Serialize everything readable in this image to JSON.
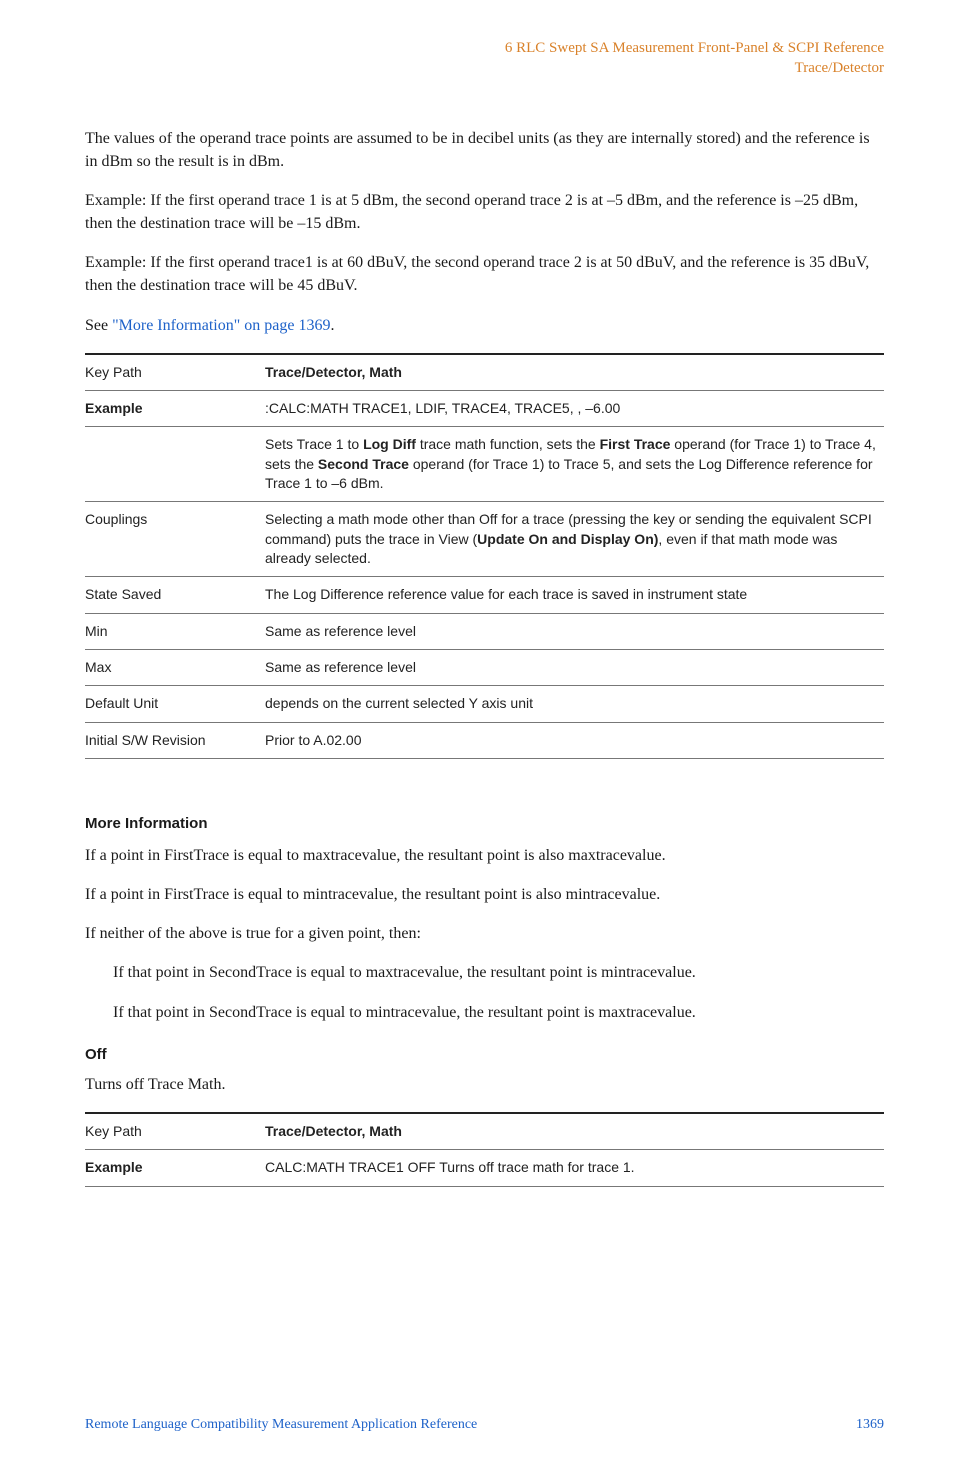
{
  "colors": {
    "header_orange": "#d9822b",
    "link_blue": "#1e62c9",
    "text": "#1a1a1a",
    "rule": "#777777",
    "rule_heavy": "#222222",
    "background": "#ffffff"
  },
  "typography": {
    "body_family": "Georgia, serif",
    "sans_family": "Helvetica Neue, Arial, sans-serif",
    "body_size_pt": 12,
    "table_size_pt": 10.5,
    "heading_size_pt": 11
  },
  "header": {
    "line1": "6  RLC Swept SA Measurement Front-Panel & SCPI Reference",
    "line2": "Trace/Detector"
  },
  "paragraphs": {
    "p1": "The values of the operand trace points are assumed to be in decibel units (as they are internally stored) and the reference is in dBm so the result is in dBm.",
    "p2": "Example: If the first operand trace 1 is at 5 dBm, the second operand trace 2 is at –5 dBm, and the reference is –25 dBm, then the destination trace will be –15 dBm.",
    "p3": "Example: If the first operand trace1 is at 60 dBuV, the second operand trace 2 is at 50 dBuV, and the reference is 35 dBuV, then the destination trace will be 45 dBuV.",
    "see_prefix": "See ",
    "see_link": "\"More Information\" on page 1369",
    "see_suffix": "."
  },
  "table1": {
    "rows": [
      {
        "key": "Key Path",
        "key_bold": false,
        "value_html": "<span class=\"bold\">Trace/Detector, Math</span>"
      },
      {
        "key": "Example",
        "key_bold": true,
        "value_html": ":CALC:MATH TRACE1, LDIF, TRACE4, TRACE5, , –6.00"
      },
      {
        "key": "",
        "key_bold": false,
        "value_html": "Sets Trace 1 to <span class=\"bold\">Log Diff</span> trace math function, sets the <span class=\"bold\">First Trace</span> operand (for Trace 1) to Trace 4, sets the <span class=\"bold\">Second Trace</span> operand (for Trace 1) to Trace 5, and sets the Log Difference reference for Trace 1 to –6 dBm."
      },
      {
        "key": "Couplings",
        "key_bold": false,
        "value_html": "Selecting a math mode other than Off for a trace (pressing the key or sending the equivalent SCPI command) puts the trace in View (<span class=\"bold\">Update On and Display On)</span>, even if that math mode was already selected."
      },
      {
        "key": "State Saved",
        "key_bold": false,
        "value_html": "The Log Difference reference value for each trace is saved in instrument state"
      },
      {
        "key": "Min",
        "key_bold": false,
        "value_html": "Same as reference level"
      },
      {
        "key": "Max",
        "key_bold": false,
        "value_html": "Same as reference level"
      },
      {
        "key": "Default Unit",
        "key_bold": false,
        "value_html": "depends on the current selected Y axis unit"
      },
      {
        "key": "Initial S/W Revision",
        "key_bold": false,
        "value_html": "Prior to A.02.00"
      }
    ]
  },
  "more_info": {
    "heading": "More Information",
    "p1": "If a point in FirstTrace is equal to maxtracevalue, the resultant point is also maxtracevalue.",
    "p2": "If a point in FirstTrace is equal to mintracevalue, the resultant point is also mintracevalue.",
    "p3": "If neither of the above is true for a given point, then:",
    "p4": "If that point in SecondTrace is equal to maxtracevalue, the resultant point is mintracevalue.",
    "p5": "If that point in SecondTrace is equal to mintracevalue, the resultant point is maxtracevalue."
  },
  "off": {
    "heading": "Off",
    "p1": "Turns off Trace Math."
  },
  "table2": {
    "rows": [
      {
        "key": "Key Path",
        "key_bold": false,
        "value_html": "<span class=\"bold\">Trace/Detector, Math</span>"
      },
      {
        "key": "Example",
        "key_bold": true,
        "value_html": "CALC:MATH TRACE1 OFF Turns off trace math for trace 1."
      }
    ]
  },
  "footer": {
    "title": "Remote Language Compatibility Measurement Application Reference",
    "page": "1369"
  }
}
